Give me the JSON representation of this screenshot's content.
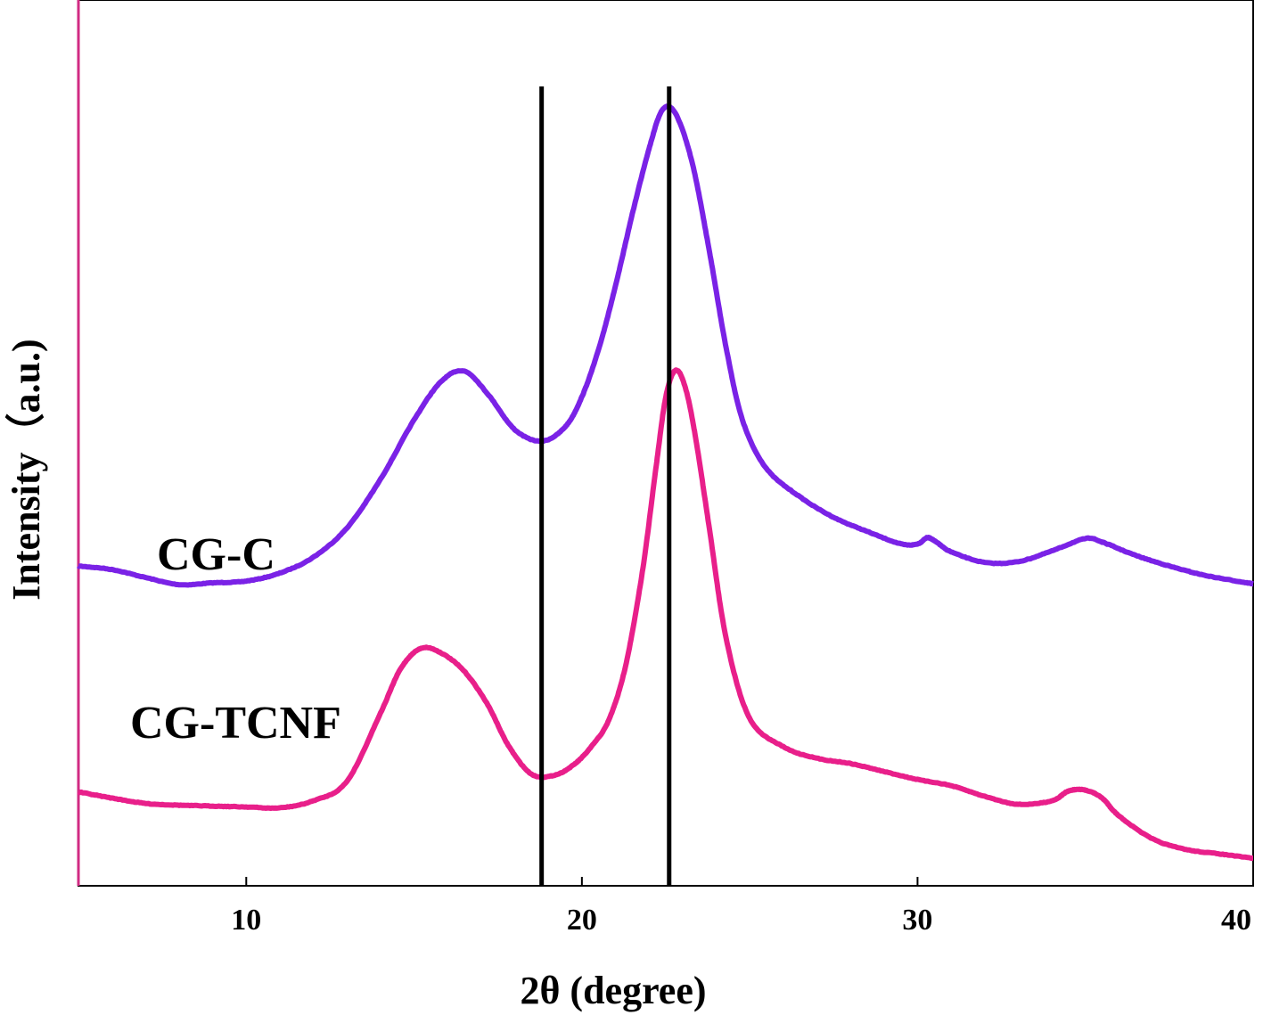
{
  "chart_data": {
    "type": "line",
    "title": "",
    "xlabel": "2θ (degree)",
    "ylabel": "Intensity（a.u.)",
    "xlim": [
      5,
      40
    ],
    "ylim": [
      0,
      100
    ],
    "xticks": [
      10,
      20,
      30,
      40
    ],
    "xtick_labels": [
      "10",
      "20",
      "30",
      "40"
    ],
    "grid": false,
    "reference_lines": [
      18.8,
      22.6
    ],
    "series": [
      {
        "name": "CG-C",
        "color": "#7a22e6",
        "x": [
          5,
          6,
          7,
          8,
          9,
          10,
          11,
          12,
          13,
          14,
          15,
          15.8,
          16.5,
          17.2,
          18,
          18.8,
          19.5,
          20,
          20.5,
          21,
          21.5,
          22,
          22.4,
          22.8,
          23.3,
          23.8,
          24.3,
          24.8,
          25.5,
          26.5,
          27.5,
          28.5,
          29.5,
          30.0,
          30.3,
          30.6,
          31,
          32,
          33,
          34,
          35,
          35.5,
          36.5,
          37.5,
          38.5,
          39.5,
          40
        ],
        "y": [
          36.1,
          35.7,
          34.8,
          34.0,
          34.2,
          34.4,
          35.3,
          37.1,
          40.4,
          45.9,
          52.6,
          56.9,
          58.1,
          55.5,
          51.5,
          50.2,
          51.8,
          55.2,
          60.6,
          67.7,
          75.8,
          83.2,
          87.6,
          87.1,
          81.4,
          71.6,
          60.7,
          52.4,
          47.1,
          43.9,
          41.6,
          40.0,
          38.6,
          38.6,
          39.3,
          38.7,
          37.7,
          36.5,
          36.6,
          37.8,
          39.2,
          38.8,
          37.3,
          36.1,
          35.1,
          34.4,
          34.1
        ]
      },
      {
        "name": "CG-TCNF",
        "color": "#e81f8a",
        "x": [
          5,
          6,
          7,
          8,
          9,
          10,
          11,
          12,
          13,
          14,
          14.6,
          15.2,
          15.8,
          16.5,
          17.2,
          17.8,
          18.5,
          19.2,
          19.8,
          20.3,
          20.8,
          21.3,
          21.8,
          22.2,
          22.5,
          22.8,
          23.1,
          23.4,
          23.8,
          24.3,
          25,
          26,
          27,
          28,
          29,
          30,
          31,
          32,
          33,
          34,
          34.5,
          35,
          35.5,
          36,
          37,
          38,
          39,
          40
        ],
        "y": [
          10.6,
          9.9,
          9.3,
          9.1,
          9.0,
          8.9,
          8.8,
          9.6,
          11.8,
          19.5,
          24.5,
          26.8,
          26.3,
          24.2,
          20.4,
          15.9,
          12.6,
          12.5,
          13.8,
          15.8,
          18.7,
          24.8,
          35.4,
          47.0,
          55.2,
          58.2,
          56.0,
          50.3,
          40.3,
          27.9,
          18.9,
          15.7,
          14.4,
          13.8,
          12.9,
          12.0,
          11.3,
          10.1,
          9.2,
          9.6,
          10.7,
          10.8,
          9.9,
          7.9,
          5.3,
          4.1,
          3.6,
          3.1
        ]
      }
    ]
  }
}
